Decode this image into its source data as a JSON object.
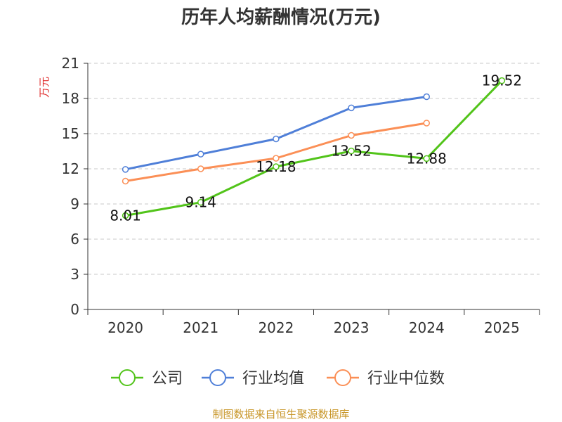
{
  "chart_data": {
    "type": "line",
    "title": "历年人均薪酬情况(万元)",
    "xlabel": "",
    "ylabel": "万元",
    "categories": [
      "2020",
      "2021",
      "2022",
      "2023",
      "2024",
      "2025"
    ],
    "yticks": [
      "0",
      "3",
      "6",
      "9",
      "12",
      "15",
      "18",
      "21"
    ],
    "ylim": [
      0,
      21
    ],
    "grid": true,
    "legend_position": "bottom",
    "series": [
      {
        "name": "公司",
        "color": "#52c41a",
        "values": [
          8.01,
          9.14,
          12.18,
          13.52,
          12.88,
          19.52
        ],
        "labels": [
          "8.01",
          "9.14",
          "12.18",
          "13.52",
          "12.88",
          "19.52"
        ]
      },
      {
        "name": "行业均值",
        "color": "#4f7fd8",
        "values": [
          11.95,
          13.25,
          14.55,
          17.2,
          18.15,
          null
        ]
      },
      {
        "name": "行业中位数",
        "color": "#fb8f56",
        "values": [
          10.95,
          12.0,
          12.9,
          14.85,
          15.9,
          null
        ]
      }
    ]
  },
  "source": "制图数据来自恒生聚源数据库"
}
